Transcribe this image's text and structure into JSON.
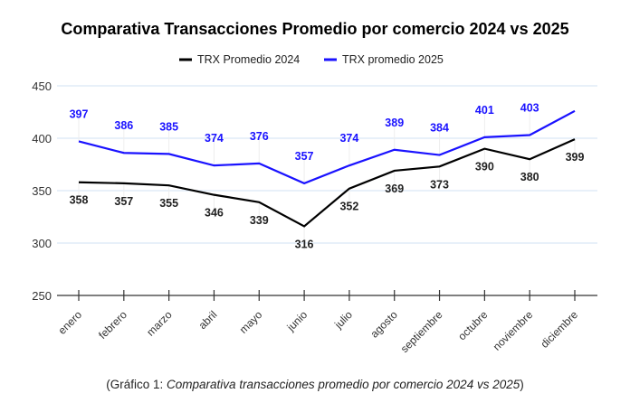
{
  "chart_data": {
    "type": "line",
    "title": "Comparativa Transacciones Promedio por comercio 2024 vs 2025",
    "categories": [
      "enero",
      "febrero",
      "marzo",
      "abril",
      "mayo",
      "junio",
      "julio",
      "agosto",
      "septiembre",
      "octubre",
      "noviembre",
      "diciembre"
    ],
    "ylim": [
      250,
      450
    ],
    "yticks": [
      250,
      300,
      350,
      400,
      450
    ],
    "grid": true,
    "legend_position": "top",
    "series": [
      {
        "name": "TRX Promedio 2024",
        "color": "#000000",
        "values": [
          358,
          357,
          355,
          346,
          339,
          316,
          352,
          369,
          373,
          390,
          380,
          399
        ],
        "labels": [
          "358",
          "357",
          "355",
          "346",
          "339",
          "316",
          "352",
          "369",
          "373",
          "390",
          "380",
          "399"
        ]
      },
      {
        "name": "TRX promedio 2025",
        "color": "#1a12ff",
        "values": [
          397,
          386,
          385,
          374,
          376,
          357,
          374,
          389,
          384,
          401,
          403,
          426
        ],
        "labels": [
          "397",
          "386",
          "385",
          "374",
          "376",
          "357",
          "374",
          "389",
          "384",
          "401",
          "403",
          ""
        ]
      }
    ]
  },
  "caption": {
    "prefix": "(Gráfico 1: ",
    "italic": "Comparativa transacciones promedio por comercio 2024 vs 2025",
    "suffix": ")"
  }
}
